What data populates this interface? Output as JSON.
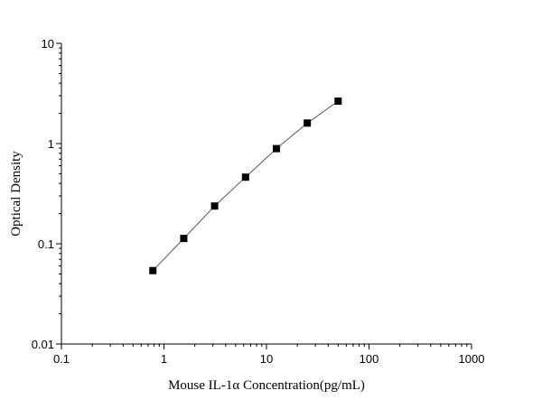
{
  "chart_data": {
    "type": "scatter",
    "title": "",
    "xlabel": "Mouse IL-1α Concentration(pg/mL)",
    "ylabel": "Optical Density",
    "x_scale": "log",
    "y_scale": "log",
    "xlim": [
      0.1,
      1000
    ],
    "ylim": [
      0.01,
      10
    ],
    "x_ticks": [
      0.1,
      1,
      10,
      100,
      1000
    ],
    "x_tick_labels": [
      "0.1",
      "1",
      "10",
      "100",
      "1000"
    ],
    "y_ticks": [
      0.01,
      0.1,
      1,
      10
    ],
    "y_tick_labels": [
      "0.01",
      "0.1",
      "1",
      "10"
    ],
    "grid": false,
    "fit_line": true,
    "series": [
      {
        "x": [
          0.78,
          1.56,
          3.12,
          6.25,
          12.5,
          25,
          50
        ],
        "y": [
          0.054,
          0.113,
          0.238,
          0.462,
          0.89,
          1.6,
          2.65
        ]
      }
    ]
  }
}
